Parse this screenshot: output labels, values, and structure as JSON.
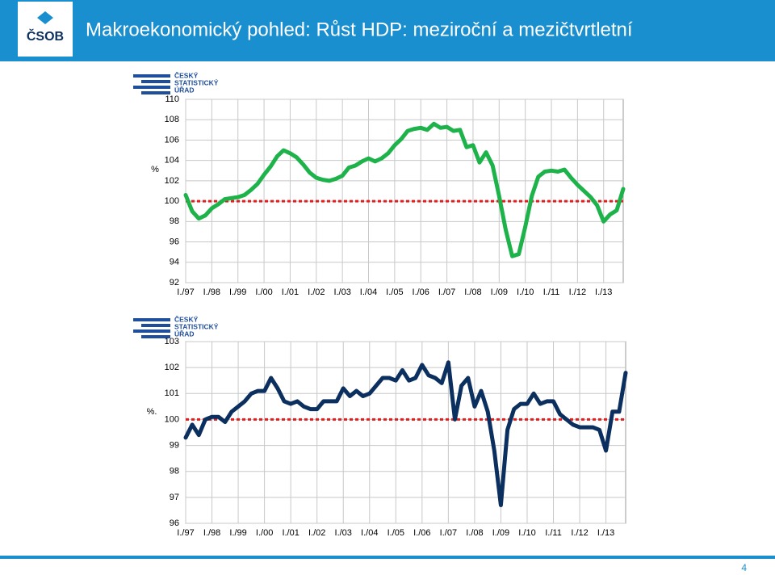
{
  "header": {
    "title": "Makroekonomický pohled: Růst HDP: meziroční a mezičtvrtletní",
    "logo": "ČSOB"
  },
  "source_logo": [
    "ČESKÝ",
    "STATISTICKÝ",
    "ÚŘAD"
  ],
  "slide_number": 4,
  "chart_data": [
    {
      "type": "line",
      "ylabel": "%",
      "categories": [
        "I./97",
        null,
        null,
        null,
        "I./98",
        null,
        null,
        null,
        "I./99",
        null,
        null,
        null,
        "I./00",
        null,
        null,
        null,
        "I./01",
        null,
        null,
        null,
        "I./02",
        null,
        null,
        null,
        "I./03",
        null,
        null,
        null,
        "I./04",
        null,
        null,
        null,
        "I./05",
        null,
        null,
        null,
        "I./06",
        null,
        null,
        null,
        "I./07",
        null,
        null,
        null,
        "I./08",
        null,
        null,
        null,
        "I./09",
        null,
        null,
        null,
        "I./10",
        null,
        null,
        null,
        "I./11",
        null,
        null,
        null,
        "I./12",
        null,
        null,
        null,
        "I./13",
        null,
        null,
        null
      ],
      "series": [
        {
          "color": "#1db34a",
          "values": [
            100.6,
            99.0,
            98.3,
            98.6,
            99.3,
            99.7,
            100.2,
            100.3,
            100.4,
            100.6,
            101.1,
            101.7,
            102.6,
            103.4,
            104.4,
            105.0,
            104.7,
            104.3,
            103.6,
            102.8,
            102.3,
            102.1,
            102.0,
            102.2,
            102.5,
            103.3,
            103.5,
            103.9,
            104.2,
            103.9,
            104.2,
            104.7,
            105.5,
            106.1,
            106.9,
            107.1,
            107.2,
            107.0,
            107.6,
            107.2,
            107.3,
            106.9,
            107.0,
            105.3,
            105.5,
            103.8,
            104.8,
            103.5,
            100.5,
            97.2,
            94.6,
            94.8,
            97.5,
            100.5,
            102.4,
            102.9,
            103.0,
            102.9,
            103.1,
            102.3,
            101.6,
            101.0,
            100.4,
            99.6,
            98.0,
            98.7,
            99.1,
            101.2
          ]
        }
      ],
      "reference_line": {
        "value": 100,
        "color": "#e02020"
      },
      "ylim": [
        92,
        110
      ],
      "yticks": [
        92,
        94,
        96,
        98,
        100,
        102,
        104,
        106,
        108,
        110
      ],
      "grid": true
    },
    {
      "type": "line",
      "ylabel": "%.",
      "categories": [
        "I./97",
        null,
        null,
        null,
        "I./98",
        null,
        null,
        null,
        "I./99",
        null,
        null,
        null,
        "I./00",
        null,
        null,
        null,
        "I./01",
        null,
        null,
        null,
        "I./02",
        null,
        null,
        null,
        "I./03",
        null,
        null,
        null,
        "I./04",
        null,
        null,
        null,
        "I./05",
        null,
        null,
        null,
        "I./06",
        null,
        null,
        null,
        "I./07",
        null,
        null,
        null,
        "I./08",
        null,
        null,
        null,
        "I./09",
        null,
        null,
        null,
        "I./10",
        null,
        null,
        null,
        "I./11",
        null,
        null,
        null,
        "I./12",
        null,
        null,
        null,
        "I./13",
        null,
        null,
        null
      ],
      "series": [
        {
          "color": "#0b2f5e",
          "values": [
            99.3,
            99.8,
            99.4,
            100.0,
            100.1,
            100.1,
            99.9,
            100.3,
            100.5,
            100.7,
            101.0,
            101.1,
            101.1,
            101.6,
            101.2,
            100.7,
            100.6,
            100.7,
            100.5,
            100.4,
            100.4,
            100.7,
            100.7,
            100.7,
            101.2,
            100.9,
            101.1,
            100.9,
            101.0,
            101.3,
            101.6,
            101.6,
            101.5,
            101.9,
            101.5,
            101.6,
            102.1,
            101.7,
            101.6,
            101.4,
            102.2,
            100.0,
            101.3,
            101.6,
            100.5,
            101.1,
            100.3,
            98.8,
            96.7,
            99.6,
            100.4,
            100.6,
            100.6,
            101.0,
            100.6,
            100.7,
            100.7,
            100.2,
            100.0,
            99.8,
            99.7,
            99.7,
            99.7,
            99.6,
            98.8,
            100.3,
            100.3,
            101.8
          ]
        }
      ],
      "reference_line": {
        "value": 100,
        "color": "#e02020"
      },
      "ylim": [
        96,
        103
      ],
      "yticks": [
        96,
        97,
        98,
        99,
        100,
        101,
        102,
        103
      ],
      "grid": true
    }
  ]
}
